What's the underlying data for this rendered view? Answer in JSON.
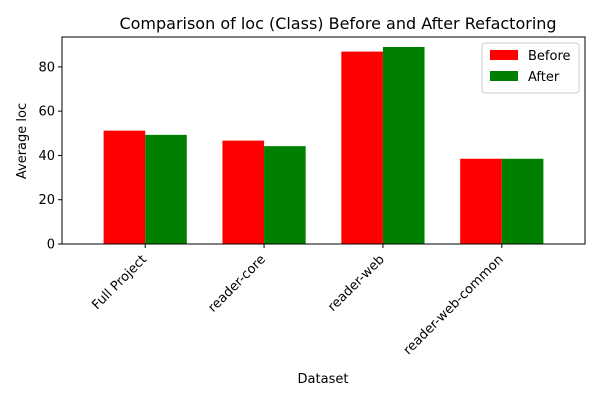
{
  "chart_data": {
    "type": "bar",
    "title": "Comparison of loc (Class) Before and After Refactoring",
    "xlabel": "Dataset",
    "ylabel": "Average loc",
    "categories": [
      "Full Project",
      "reader-core",
      "reader-web",
      "reader-web-common"
    ],
    "series": [
      {
        "name": "Before",
        "color": "#ff0000",
        "values": [
          51.2,
          46.7,
          86.9,
          38.5
        ]
      },
      {
        "name": "After",
        "color": "#008000",
        "values": [
          49.3,
          44.2,
          89.0,
          38.5
        ]
      }
    ],
    "ylim": [
      0,
      93.5
    ],
    "yticks": [
      0,
      20,
      40,
      60,
      80
    ],
    "legend_position": "top-right",
    "grid": false
  }
}
